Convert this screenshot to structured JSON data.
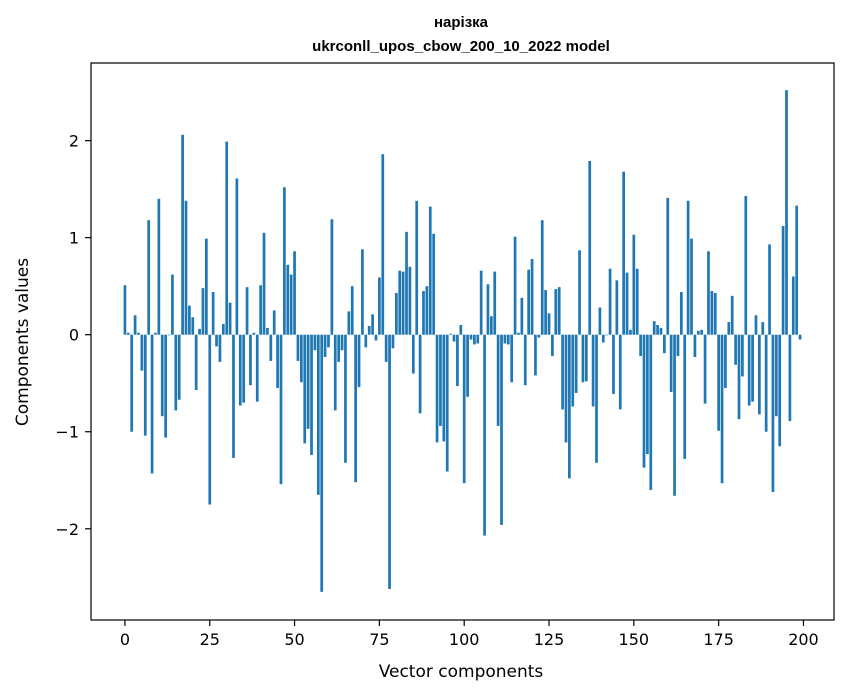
{
  "chart_data": {
    "type": "bar",
    "title": "нарізка",
    "subtitle": "ukrconll_upos_cbow_200_10_2022 model",
    "xlabel": "Vector components",
    "ylabel": "Components values",
    "xlim": [
      -10,
      209
    ],
    "ylim": [
      -2.94,
      2.8
    ],
    "grid": false,
    "legend": "none",
    "bar_color": "#1f77b4",
    "x_ticks": [
      0,
      25,
      50,
      75,
      100,
      125,
      150,
      175,
      200
    ],
    "x_tick_labels": [
      "0",
      "25",
      "50",
      "75",
      "100",
      "125",
      "150",
      "175",
      "200"
    ],
    "y_ticks": [
      -2,
      -1,
      0,
      1,
      2
    ],
    "y_tick_labels": [
      "−2",
      "−1",
      "0",
      "1",
      "2"
    ],
    "x": [
      0,
      1,
      2,
      3,
      4,
      5,
      6,
      7,
      8,
      9,
      10,
      11,
      12,
      13,
      14,
      15,
      16,
      17,
      18,
      19,
      20,
      21,
      22,
      23,
      24,
      25,
      26,
      27,
      28,
      29,
      30,
      31,
      32,
      33,
      34,
      35,
      36,
      37,
      38,
      39,
      40,
      41,
      42,
      43,
      44,
      45,
      46,
      47,
      48,
      49,
      50,
      51,
      52,
      53,
      54,
      55,
      56,
      57,
      58,
      59,
      60,
      61,
      62,
      63,
      64,
      65,
      66,
      67,
      68,
      69,
      70,
      71,
      72,
      73,
      74,
      75,
      76,
      77,
      78,
      79,
      80,
      81,
      82,
      83,
      84,
      85,
      86,
      87,
      88,
      89,
      90,
      91,
      92,
      93,
      94,
      95,
      96,
      97,
      98,
      99,
      100,
      101,
      102,
      103,
      104,
      105,
      106,
      107,
      108,
      109,
      110,
      111,
      112,
      113,
      114,
      115,
      116,
      117,
      118,
      119,
      120,
      121,
      122,
      123,
      124,
      125,
      126,
      127,
      128,
      129,
      130,
      131,
      132,
      133,
      134,
      135,
      136,
      137,
      138,
      139,
      140,
      141,
      142,
      143,
      144,
      145,
      146,
      147,
      148,
      149,
      150,
      151,
      152,
      153,
      154,
      155,
      156,
      157,
      158,
      159,
      160,
      161,
      162,
      163,
      164,
      165,
      166,
      167,
      168,
      169,
      170,
      171,
      172,
      173,
      174,
      175,
      176,
      177,
      178,
      179,
      180,
      181,
      182,
      183,
      184,
      185,
      186,
      187,
      188,
      189,
      190,
      191,
      192,
      193,
      194,
      195,
      196,
      197,
      198,
      199
    ],
    "values": [
      0.51,
      0.02,
      -1.0,
      0.2,
      0.02,
      -0.37,
      -1.04,
      1.18,
      -1.43,
      0.02,
      1.4,
      -0.84,
      -1.06,
      0.0,
      0.62,
      -0.78,
      -0.67,
      2.06,
      1.38,
      0.3,
      0.18,
      -0.57,
      0.06,
      0.48,
      0.99,
      -1.75,
      0.44,
      -0.12,
      -0.28,
      0.11,
      1.99,
      0.33,
      -1.27,
      1.61,
      -0.73,
      -0.7,
      0.49,
      -0.52,
      0.02,
      -0.69,
      0.51,
      1.05,
      0.07,
      -0.27,
      0.25,
      -0.55,
      -1.54,
      1.52,
      0.72,
      0.62,
      0.86,
      -0.27,
      -0.49,
      -1.12,
      -0.97,
      -1.24,
      -0.16,
      -1.65,
      -2.65,
      -0.23,
      -0.13,
      1.19,
      -0.78,
      -0.28,
      -0.16,
      -1.32,
      0.24,
      0.5,
      -1.52,
      -0.54,
      0.88,
      -0.13,
      0.09,
      0.21,
      -0.06,
      0.59,
      1.86,
      -0.28,
      -2.62,
      -0.14,
      0.43,
      0.66,
      0.65,
      1.06,
      0.7,
      -0.4,
      1.38,
      -0.81,
      0.45,
      0.5,
      1.32,
      1.04,
      -1.11,
      -0.94,
      -1.1,
      -1.41,
      0.01,
      -0.07,
      -0.53,
      0.1,
      -1.53,
      -0.64,
      -0.05,
      -0.1,
      -0.09,
      0.66,
      -2.07,
      0.52,
      0.19,
      0.65,
      -0.94,
      -1.96,
      -0.09,
      -0.1,
      -0.49,
      1.01,
      0.02,
      0.38,
      -0.52,
      0.67,
      0.78,
      -0.42,
      -0.03,
      1.18,
      0.46,
      0.22,
      -0.22,
      0.47,
      0.49,
      -0.77,
      -1.11,
      -1.48,
      -0.74,
      -0.6,
      0.87,
      -0.49,
      -0.48,
      1.79,
      -0.74,
      -1.32,
      0.28,
      -0.08,
      0.0,
      0.68,
      -0.61,
      0.56,
      -0.77,
      1.68,
      0.64,
      0.05,
      1.03,
      0.68,
      -0.22,
      -1.37,
      -1.23,
      -1.6,
      0.14,
      0.1,
      0.07,
      -0.19,
      1.41,
      -0.59,
      -1.66,
      -0.22,
      0.44,
      -1.28,
      1.38,
      0.99,
      -0.23,
      0.04,
      0.05,
      -0.71,
      0.86,
      0.45,
      0.43,
      -0.99,
      -1.53,
      -0.55,
      0.13,
      0.4,
      -0.31,
      -0.87,
      -0.43,
      1.43,
      -0.73,
      -0.69,
      0.2,
      -0.82,
      0.13,
      -1.0,
      0.93,
      -1.62,
      -0.84,
      -1.15,
      1.12,
      2.52,
      -0.89,
      0.6,
      1.33,
      -0.05
    ]
  }
}
